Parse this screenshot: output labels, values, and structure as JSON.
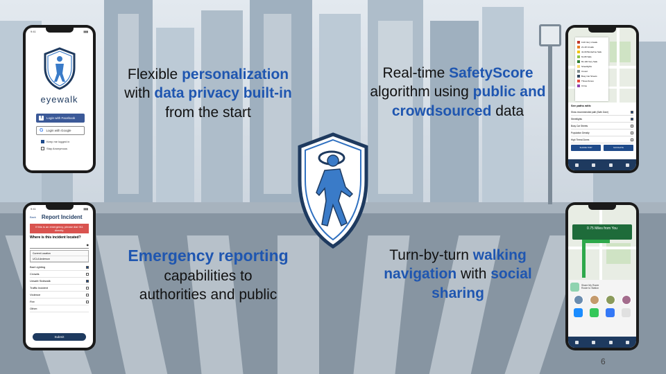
{
  "captions": {
    "personalization": {
      "pre": "Flexible ",
      "hl1": "personalization",
      "mid": " with ",
      "hl2": "data privacy built-in",
      "post": " from the start"
    },
    "safetyscore": {
      "pre": "Real-time ",
      "hl1": "SafetyScore",
      "mid": " algorithm using ",
      "hl2": "public and crowdsourced",
      "post": " data"
    },
    "emergency": {
      "hl1": "Emergency reporting",
      "post": " capabilities to authorities and public"
    },
    "navigation": {
      "pre": "Turn-by-turn ",
      "hl1": "walking navigation",
      "mid": " with ",
      "hl2": "social sharing"
    }
  },
  "login_phone": {
    "brand": "eyewalk",
    "facebook_button": "Login with Facebook",
    "google_button": "Login with Google",
    "keep_logged_in": "Keep me logged in",
    "stay_anonymous": "Stay Anonymous"
  },
  "map_phone": {
    "legend": [
      {
        "label": "0-20 Very Unsafe",
        "color": "#c0392b"
      },
      {
        "label": "21-40 Unsafe",
        "color": "#e67e22"
      },
      {
        "label": "41-60 Borderline Safe",
        "color": "#f1c40f"
      },
      {
        "label": "61-80 Safe",
        "color": "#8bc34a"
      },
      {
        "label": "81-100 Very Safe",
        "color": "#2e7d32"
      },
      {
        "label": "Streetlights",
        "color": "#f5d76e"
      },
      {
        "label": "Crowd",
        "color": "#7f8c8d"
      },
      {
        "label": "Busy Car Streets",
        "color": "#34495e"
      },
      {
        "label": "Threat Zones",
        "color": "#e74c3c"
      },
      {
        "label": "Crime",
        "color": "#8e44ad"
      }
    ],
    "paths_header": "See paths with:",
    "paths": [
      {
        "label": "Show recommended path (Safe Zone)",
        "checked": true
      },
      {
        "label": "Streetlights",
        "checked": true
      },
      {
        "label": "Busy Car Streets",
        "checked": false
      },
      {
        "label": "Population Density",
        "checked": false
      },
      {
        "label": "High Threat Zones",
        "checked": false
      }
    ],
    "btn_left": "SHARE TRIP",
    "btn_right": "NAVIGATE"
  },
  "report_phone": {
    "back": "Back",
    "title": "Report Incident",
    "alert": "If this is an emergency, please dial 911 directly.",
    "question": "Where is this incident located?",
    "dropdown": [
      "Current Location",
      "UCLA Anderson"
    ],
    "rows": [
      {
        "label": "Bad Lighting",
        "checked": true
      },
      {
        "label": "Crowds",
        "checked": false
      },
      {
        "label": "Unsafe Sidewalk",
        "checked": true
      },
      {
        "label": "Traffic Incident",
        "checked": false
      },
      {
        "label": "Violence",
        "checked": false
      },
      {
        "label": "Fire",
        "checked": false
      }
    ],
    "other": "Other:",
    "submit": "Submit"
  },
  "nav_phone": {
    "banner": "0.75 Miles from You",
    "share_title": "Share My Route",
    "share_subtitle": "Route to Station"
  },
  "slide_number": "6"
}
